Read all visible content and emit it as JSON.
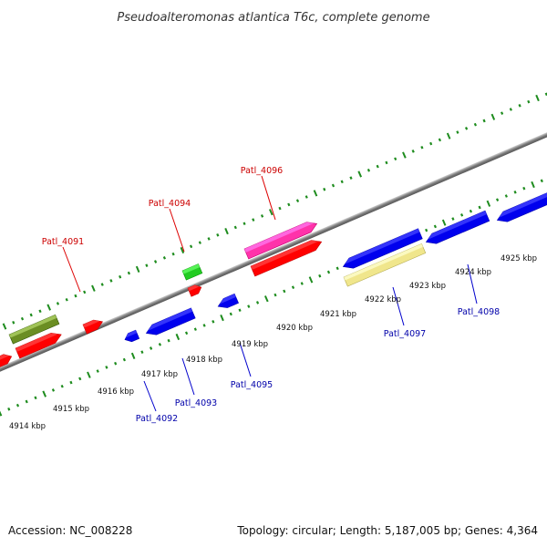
{
  "title": "Pseudoalteromonas atlantica T6c, complete genome",
  "footer": {
    "accession": "Accession: NC_008228",
    "summary": "Topology: circular; Length: 5,187,005 bp; Genes: 4,364"
  },
  "colors": {
    "backbone": "#8c8c8c",
    "tick": "#1e8c1e",
    "forward_label": "#cc0000",
    "reverse_label": "#0000aa",
    "gene_red": "#ff0000",
    "gene_blue": "#0000ee",
    "gene_olive": "#6b8e23",
    "gene_green": "#22cc22",
    "gene_magenta": "#ff33aa",
    "gene_pale": "#f0e68c"
  },
  "scale_labels": [
    "4914 kbp",
    "4915 kbp",
    "4916 kbp",
    "4917 kbp",
    "4918 kbp",
    "4919 kbp",
    "4920 kbp",
    "4921 kbp",
    "4922 kbp",
    "4923 kbp",
    "4924 kbp",
    "4925 kbp"
  ],
  "gene_labels": {
    "forward": [
      "Patl_4091",
      "Patl_4094",
      "Patl_4096"
    ],
    "reverse": [
      "Patl_4092",
      "Patl_4093",
      "Patl_4095",
      "Patl_4097",
      "Patl_4098"
    ]
  }
}
